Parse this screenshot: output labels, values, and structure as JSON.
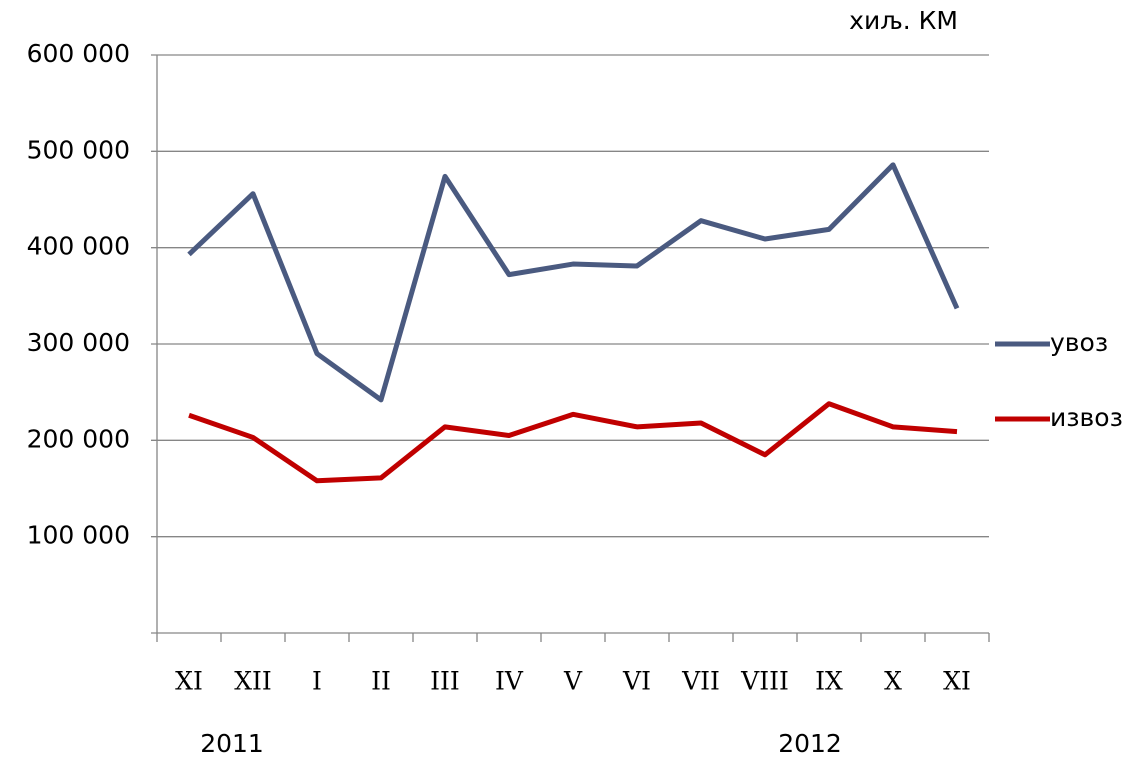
{
  "chart_data": {
    "type": "line",
    "unit_label": "хиљ. КМ",
    "categories": [
      "XI",
      "XII",
      "I",
      "II",
      "III",
      "IV",
      "V",
      "VI",
      "VII",
      "VIII",
      "IX",
      "X",
      "XI"
    ],
    "year_labels": [
      "2011",
      "2012"
    ],
    "series": [
      {
        "name": "увоз",
        "color": "#4a5a80",
        "values": [
          393000,
          456000,
          290000,
          242000,
          474000,
          372000,
          383000,
          381000,
          428000,
          409000,
          419000,
          486000,
          337000
        ]
      },
      {
        "name": "извоз",
        "color": "#c00000",
        "values": [
          226000,
          203000,
          158000,
          161000,
          214000,
          205000,
          227000,
          214000,
          218000,
          185000,
          238000,
          214000,
          209000
        ]
      }
    ],
    "ylim": [
      0,
      600000
    ],
    "yticks": [
      {
        "value": 100000,
        "label": "100 000"
      },
      {
        "value": 200000,
        "label": "200 000"
      },
      {
        "value": 300000,
        "label": "300 000"
      },
      {
        "value": 400000,
        "label": "400 000"
      },
      {
        "value": 500000,
        "label": "500 000"
      },
      {
        "value": 600000,
        "label": "600 000"
      }
    ],
    "grid": true,
    "legend": "right"
  }
}
